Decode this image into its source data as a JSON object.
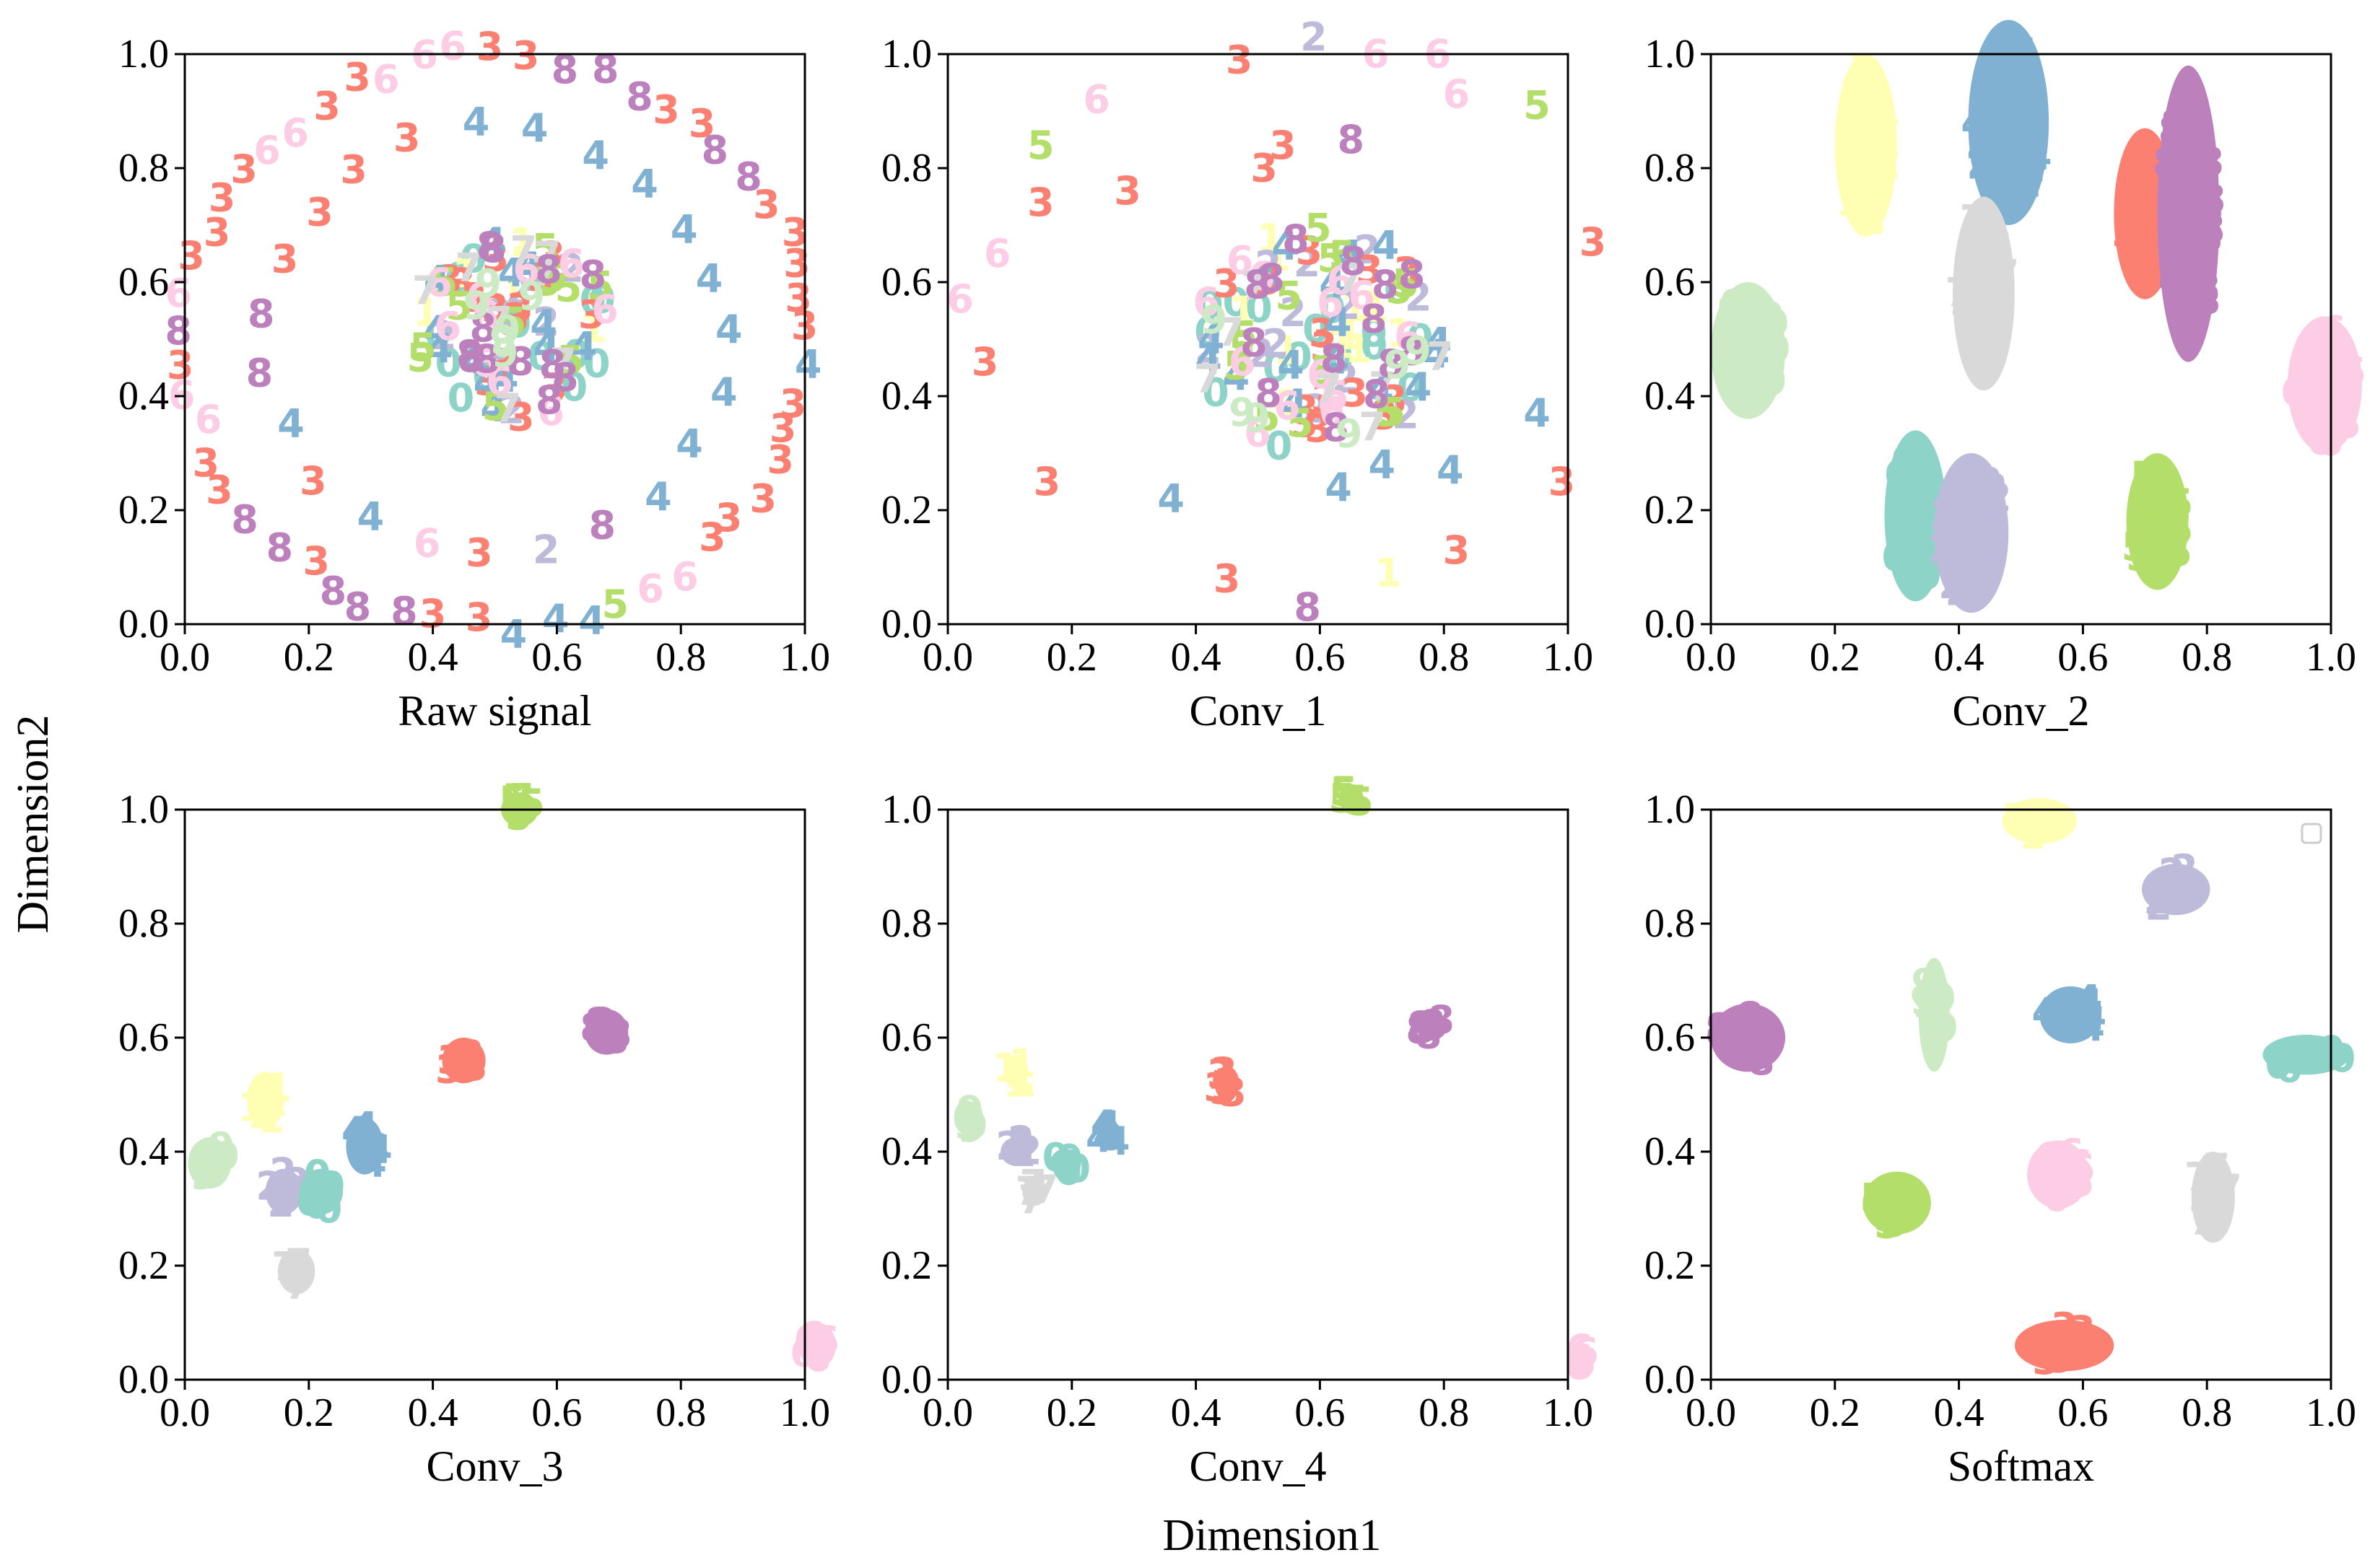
{
  "figure": {
    "xlabel": "Dimension1",
    "ylabel": "Dimension2",
    "tick_labels": [
      "0.0",
      "0.2",
      "0.4",
      "0.6",
      "0.8",
      "1.0"
    ]
  },
  "class_colors": {
    "0": "#8dd3c7",
    "1": "#ffffb3",
    "2": "#bebada",
    "3": "#fb8072",
    "4": "#80b1d3",
    "5": "#b3de69",
    "6": "#fccde5",
    "7": "#d9d9d9",
    "8": "#bc80bd",
    "9": "#ccebc5"
  },
  "chart_data": [
    {
      "type": "scatter",
      "title": "Raw signal",
      "xlabel": "Raw signal",
      "xlim": [
        0,
        1
      ],
      "ylim": [
        0,
        1
      ],
      "rings": [
        {
          "cx": 0.5,
          "cy": 0.5,
          "r": 0.5,
          "labels": [
            "3",
            "3",
            "3",
            "3",
            "3",
            "8",
            "8",
            "3",
            "3",
            "8",
            "8",
            "8",
            "3",
            "3",
            "6",
            "6",
            "6",
            "3",
            "3",
            "6",
            "6",
            "3",
            "3",
            "3",
            "3",
            "6",
            "8",
            "3",
            "6",
            "6",
            "3",
            "3",
            "8",
            "8",
            "3",
            "8",
            "8",
            "8",
            "3",
            "3",
            "4",
            "4",
            "4",
            "5",
            "6",
            "6",
            "3",
            "3",
            "3",
            "3",
            "3",
            "3",
            "4"
          ]
        },
        {
          "cx": 0.5,
          "cy": 0.5,
          "r": 0.37,
          "labels": [
            "4",
            "4",
            "4",
            "4",
            "4",
            "4",
            "4",
            "3",
            "3",
            "3",
            "3",
            "8",
            "8",
            "4",
            "3",
            "4",
            "6",
            "3",
            "2",
            "8",
            "4",
            "4",
            "4"
          ]
        }
      ],
      "cluster": {
        "cx": 0.53,
        "cy": 0.52,
        "r": 0.16,
        "counts": {
          "0": 14,
          "1": 6,
          "2": 8,
          "3": 14,
          "4": 14,
          "5": 12,
          "6": 10,
          "7": 8,
          "8": 12,
          "9": 6
        }
      }
    },
    {
      "type": "scatter",
      "title": "Conv_1",
      "xlabel": "Conv_1",
      "xlim": [
        0,
        1
      ],
      "ylim": [
        0,
        1
      ],
      "points": [
        {
          "label": "2",
          "x": 0.59,
          "y": 1.03
        },
        {
          "label": "6",
          "x": 0.69,
          "y": 1.0
        },
        {
          "label": "6",
          "x": 0.79,
          "y": 1.0
        },
        {
          "label": "3",
          "x": 0.47,
          "y": 0.99
        },
        {
          "label": "6",
          "x": 0.82,
          "y": 0.93
        },
        {
          "label": "6",
          "x": 0.24,
          "y": 0.92
        },
        {
          "label": "5",
          "x": 0.95,
          "y": 0.91
        },
        {
          "label": "5",
          "x": 0.15,
          "y": 0.84
        },
        {
          "label": "3",
          "x": 0.54,
          "y": 0.84
        },
        {
          "label": "8",
          "x": 0.65,
          "y": 0.85
        },
        {
          "label": "3",
          "x": 0.51,
          "y": 0.8
        },
        {
          "label": "3",
          "x": 0.29,
          "y": 0.76
        },
        {
          "label": "3",
          "x": 0.15,
          "y": 0.74
        },
        {
          "label": "3",
          "x": 1.04,
          "y": 0.67
        },
        {
          "label": "6",
          "x": 0.08,
          "y": 0.65
        },
        {
          "label": "6",
          "x": 0.02,
          "y": 0.57
        },
        {
          "label": "3",
          "x": 0.06,
          "y": 0.46
        },
        {
          "label": "4",
          "x": 0.95,
          "y": 0.37
        },
        {
          "label": "3",
          "x": 0.16,
          "y": 0.25
        },
        {
          "label": "3",
          "x": 0.99,
          "y": 0.25
        },
        {
          "label": "4",
          "x": 0.36,
          "y": 0.22
        },
        {
          "label": "3",
          "x": 0.82,
          "y": 0.13
        },
        {
          "label": "3",
          "x": 0.45,
          "y": 0.08
        },
        {
          "label": "1",
          "x": 0.71,
          "y": 0.09
        },
        {
          "label": "8",
          "x": 0.58,
          "y": 0.03
        },
        {
          "label": "4",
          "x": 0.63,
          "y": 0.24
        },
        {
          "label": "4",
          "x": 0.81,
          "y": 0.27
        },
        {
          "label": "4",
          "x": 0.7,
          "y": 0.28
        }
      ],
      "cluster": {
        "cx": 0.6,
        "cy": 0.5,
        "r": 0.2,
        "counts": {
          "0": 16,
          "1": 12,
          "2": 12,
          "3": 14,
          "4": 16,
          "5": 14,
          "6": 14,
          "7": 8,
          "8": 14,
          "9": 6
        }
      }
    },
    {
      "type": "scatter",
      "title": "Conv_2",
      "xlabel": "Conv_2",
      "xlim": [
        0,
        1
      ],
      "ylim": [
        0,
        1
      ],
      "blobs": [
        {
          "label": "1",
          "cx": 0.25,
          "cy": 0.84,
          "w": 0.1,
          "h": 0.32
        },
        {
          "label": "4",
          "cx": 0.48,
          "cy": 0.88,
          "w": 0.13,
          "h": 0.36
        },
        {
          "label": "7",
          "cx": 0.44,
          "cy": 0.58,
          "w": 0.1,
          "h": 0.34
        },
        {
          "label": "3",
          "cx": 0.7,
          "cy": 0.72,
          "w": 0.1,
          "h": 0.3
        },
        {
          "label": "8",
          "cx": 0.77,
          "cy": 0.72,
          "w": 0.1,
          "h": 0.52
        },
        {
          "label": "9",
          "cx": 0.06,
          "cy": 0.48,
          "w": 0.12,
          "h": 0.24
        },
        {
          "label": "6",
          "cx": 0.99,
          "cy": 0.42,
          "w": 0.12,
          "h": 0.24
        },
        {
          "label": "0",
          "cx": 0.33,
          "cy": 0.19,
          "w": 0.1,
          "h": 0.3
        },
        {
          "label": "2",
          "cx": 0.42,
          "cy": 0.16,
          "w": 0.12,
          "h": 0.28
        },
        {
          "label": "5",
          "cx": 0.72,
          "cy": 0.18,
          "w": 0.1,
          "h": 0.24
        }
      ]
    },
    {
      "type": "scatter",
      "title": "Conv_3",
      "xlabel": "Conv_3",
      "xlim": [
        0,
        1
      ],
      "ylim": [
        0,
        1
      ],
      "blobs": [
        {
          "label": "5",
          "cx": 0.54,
          "cy": 1.0,
          "w": 0.06,
          "h": 0.06
        },
        {
          "label": "8",
          "cx": 0.68,
          "cy": 0.61,
          "w": 0.07,
          "h": 0.08
        },
        {
          "label": "3",
          "cx": 0.45,
          "cy": 0.56,
          "w": 0.07,
          "h": 0.08
        },
        {
          "label": "1",
          "cx": 0.13,
          "cy": 0.49,
          "w": 0.06,
          "h": 0.1
        },
        {
          "label": "4",
          "cx": 0.29,
          "cy": 0.41,
          "w": 0.06,
          "h": 0.1
        },
        {
          "label": "9",
          "cx": 0.04,
          "cy": 0.38,
          "w": 0.07,
          "h": 0.09
        },
        {
          "label": "2",
          "cx": 0.16,
          "cy": 0.33,
          "w": 0.06,
          "h": 0.08
        },
        {
          "label": "0",
          "cx": 0.22,
          "cy": 0.33,
          "w": 0.07,
          "h": 0.08
        },
        {
          "label": "7",
          "cx": 0.18,
          "cy": 0.19,
          "w": 0.06,
          "h": 0.08
        },
        {
          "label": "6",
          "cx": 1.02,
          "cy": 0.06,
          "w": 0.06,
          "h": 0.08
        }
      ]
    },
    {
      "type": "scatter",
      "title": "Conv_4",
      "xlabel": "Conv_4",
      "xlim": [
        0,
        1
      ],
      "ylim": [
        0,
        1
      ],
      "blobs": [
        {
          "label": "5",
          "cx": 0.65,
          "cy": 1.02,
          "w": 0.04,
          "h": 0.05
        },
        {
          "label": "8",
          "cx": 0.78,
          "cy": 0.62,
          "w": 0.05,
          "h": 0.05
        },
        {
          "label": "3",
          "cx": 0.45,
          "cy": 0.52,
          "w": 0.04,
          "h": 0.06
        },
        {
          "label": "1",
          "cx": 0.11,
          "cy": 0.54,
          "w": 0.04,
          "h": 0.06
        },
        {
          "label": "9",
          "cx": 0.03,
          "cy": 0.46,
          "w": 0.04,
          "h": 0.06
        },
        {
          "label": "4",
          "cx": 0.26,
          "cy": 0.43,
          "w": 0.04,
          "h": 0.05
        },
        {
          "label": "2",
          "cx": 0.11,
          "cy": 0.4,
          "w": 0.05,
          "h": 0.05
        },
        {
          "label": "0",
          "cx": 0.19,
          "cy": 0.38,
          "w": 0.05,
          "h": 0.05
        },
        {
          "label": "7",
          "cx": 0.14,
          "cy": 0.33,
          "w": 0.04,
          "h": 0.05
        },
        {
          "label": "6",
          "cx": 1.02,
          "cy": 0.04,
          "w": 0.04,
          "h": 0.05
        }
      ]
    },
    {
      "type": "scatter",
      "title": "Softmax",
      "xlabel": "Softmax",
      "xlim": [
        0,
        1
      ],
      "ylim": [
        0,
        1
      ],
      "blobs": [
        {
          "label": "1",
          "cx": 0.53,
          "cy": 0.98,
          "w": 0.12,
          "h": 0.08
        },
        {
          "label": "2",
          "cx": 0.75,
          "cy": 0.86,
          "w": 0.11,
          "h": 0.09
        },
        {
          "label": "8",
          "cx": 0.06,
          "cy": 0.6,
          "w": 0.12,
          "h": 0.12
        },
        {
          "label": "9",
          "cx": 0.36,
          "cy": 0.64,
          "w": 0.05,
          "h": 0.2
        },
        {
          "label": "4",
          "cx": 0.58,
          "cy": 0.64,
          "w": 0.1,
          "h": 0.1
        },
        {
          "label": "0",
          "cx": 0.96,
          "cy": 0.57,
          "w": 0.14,
          "h": 0.07
        },
        {
          "label": "6",
          "cx": 0.56,
          "cy": 0.36,
          "w": 0.1,
          "h": 0.12
        },
        {
          "label": "5",
          "cx": 0.3,
          "cy": 0.31,
          "w": 0.11,
          "h": 0.11
        },
        {
          "label": "7",
          "cx": 0.81,
          "cy": 0.32,
          "w": 0.07,
          "h": 0.16
        },
        {
          "label": "3",
          "cx": 0.57,
          "cy": 0.06,
          "w": 0.16,
          "h": 0.09
        }
      ]
    }
  ]
}
